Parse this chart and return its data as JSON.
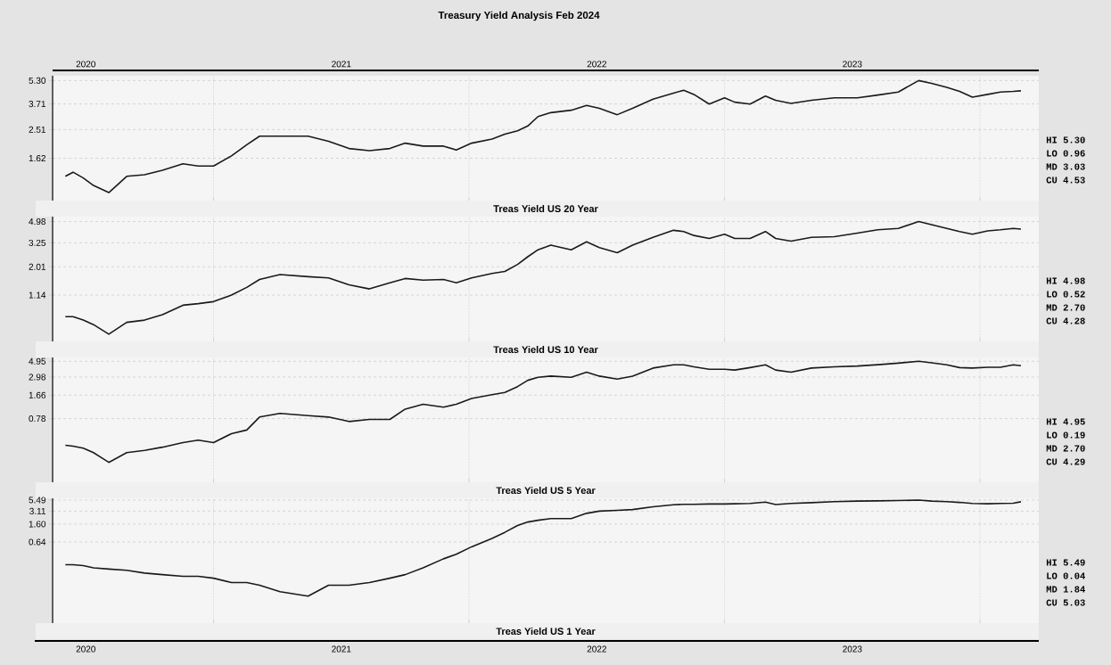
{
  "chart_data": [
    {
      "type": "line",
      "title": "Treasury Yield Analysis Feb 2024",
      "subtitle": "Treas Yield US 20 Year",
      "x": [
        2020.42,
        2020.45,
        2020.49,
        2020.53,
        2020.59,
        2020.66,
        2020.73,
        2020.8,
        2020.88,
        2020.94,
        2021.0,
        2021.07,
        2021.13,
        2021.18,
        2021.26,
        2021.37,
        2021.45,
        2021.53,
        2021.61,
        2021.69,
        2021.75,
        2021.82,
        2021.9,
        2021.95,
        2022.01,
        2022.09,
        2022.14,
        2022.19,
        2022.23,
        2022.27,
        2022.32,
        2022.4,
        2022.46,
        2022.51,
        2022.58,
        2022.64,
        2022.72,
        2022.8,
        2022.84,
        2022.88,
        2022.94,
        2023.0,
        2023.04,
        2023.1,
        2023.16,
        2023.2,
        2023.26,
        2023.34,
        2023.43,
        2023.52,
        2023.6,
        2023.68,
        2023.76,
        2023.81,
        2023.87,
        2023.92,
        2023.97,
        2024.03,
        2024.08,
        2024.13,
        2024.16
      ],
      "series": [
        {
          "color": "#1a1a1a",
          "values": [
            1.23,
            1.31,
            1.2,
            1.07,
            0.96,
            1.23,
            1.26,
            1.35,
            1.49,
            1.44,
            1.44,
            1.68,
            1.99,
            2.27,
            2.27,
            2.27,
            2.1,
            1.88,
            1.82,
            1.88,
            2.04,
            1.95,
            1.95,
            1.84,
            2.04,
            2.17,
            2.34,
            2.46,
            2.65,
            3.06,
            3.25,
            3.37,
            3.63,
            3.47,
            3.15,
            3.47,
            3.99,
            4.37,
            4.57,
            4.29,
            3.7,
            4.07,
            3.81,
            3.7,
            4.18,
            3.92,
            3.74,
            3.92,
            4.07,
            4.07,
            4.25,
            4.45,
            5.3,
            5.08,
            4.77,
            4.49,
            4.11,
            4.29,
            4.45,
            4.49,
            4.53
          ]
        }
      ],
      "xlim": [
        2020.37,
        2024.23
      ],
      "xticks": [
        {
          "value": 2021,
          "label": null
        },
        {
          "value": 2022,
          "label": null
        },
        {
          "value": 2023,
          "label": null
        },
        {
          "value": 2024,
          "label": null
        }
      ],
      "x2lim": [
        2020.37,
        2024.23
      ],
      "x2ticks": [
        {
          "value": 2020.5,
          "label": "2020"
        },
        {
          "value": 2021.5,
          "label": "2021"
        },
        {
          "value": 2022.5,
          "label": "2022"
        },
        {
          "value": 2023.5,
          "label": "2023"
        }
      ],
      "ylim": [
        0.85,
        5.7
      ],
      "yticks": [
        {
          "value": 1.62,
          "label": "1.62"
        },
        {
          "value": 2.51,
          "label": "2.51"
        },
        {
          "value": 3.71,
          "label": "3.71"
        },
        {
          "value": 5.3,
          "label": "5.30"
        }
      ],
      "log": "y",
      "grid": true,
      "tick_labels": "y",
      "annotations": [
        "HI 5.30",
        "LO 0.96",
        "MD 3.03",
        "CU 4.53"
      ]
    },
    {
      "type": "line",
      "title": "Treas Yield US 10 Year",
      "x": [
        2020.42,
        2020.45,
        2020.49,
        2020.53,
        2020.59,
        2020.66,
        2020.73,
        2020.8,
        2020.88,
        2020.94,
        2021.0,
        2021.07,
        2021.13,
        2021.18,
        2021.26,
        2021.37,
        2021.45,
        2021.53,
        2021.61,
        2021.69,
        2021.75,
        2021.82,
        2021.9,
        2021.95,
        2022.01,
        2022.09,
        2022.14,
        2022.19,
        2022.23,
        2022.27,
        2022.32,
        2022.4,
        2022.46,
        2022.51,
        2022.58,
        2022.64,
        2022.72,
        2022.8,
        2022.84,
        2022.88,
        2022.94,
        2023.0,
        2023.04,
        2023.1,
        2023.16,
        2023.2,
        2023.26,
        2023.34,
        2023.43,
        2023.52,
        2023.6,
        2023.68,
        2023.76,
        2023.81,
        2023.87,
        2023.92,
        2023.97,
        2024.03,
        2024.08,
        2024.13,
        2024.16
      ],
      "series": [
        {
          "color": "#1a1a1a",
          "values": [
            0.74,
            0.74,
            0.69,
            0.63,
            0.52,
            0.66,
            0.69,
            0.77,
            0.93,
            0.96,
            1.0,
            1.14,
            1.33,
            1.56,
            1.72,
            1.65,
            1.61,
            1.4,
            1.29,
            1.46,
            1.59,
            1.54,
            1.56,
            1.46,
            1.61,
            1.76,
            1.83,
            2.11,
            2.46,
            2.83,
            3.1,
            2.83,
            3.32,
            2.96,
            2.67,
            3.1,
            3.63,
            4.18,
            4.08,
            3.77,
            3.55,
            3.86,
            3.55,
            3.55,
            4.08,
            3.55,
            3.36,
            3.63,
            3.68,
            3.95,
            4.22,
            4.34,
            4.98,
            4.68,
            4.34,
            4.08,
            3.86,
            4.13,
            4.22,
            4.34,
            4.28
          ]
        }
      ],
      "xlim": [
        2020.37,
        2024.23
      ],
      "xticks": [
        {
          "value": 2021,
          "label": null
        },
        {
          "value": 2022,
          "label": null
        },
        {
          "value": 2023,
          "label": null
        },
        {
          "value": 2024,
          "label": null
        }
      ],
      "ylim": [
        0.45,
        5.5
      ],
      "yticks": [
        {
          "value": 1.14,
          "label": "1.14"
        },
        {
          "value": 2.01,
          "label": "2.01"
        },
        {
          "value": 3.25,
          "label": "3.25"
        },
        {
          "value": 4.98,
          "label": "4.98"
        }
      ],
      "log": "y",
      "grid": true,
      "tick_labels": "y",
      "annotations": [
        "HI 4.98",
        "LO 0.52",
        "MD 2.70",
        "CU 4.28"
      ]
    },
    {
      "type": "line",
      "title": "Treas Yield US  5 Year",
      "x": [
        2020.42,
        2020.45,
        2020.49,
        2020.53,
        2020.59,
        2020.66,
        2020.73,
        2020.8,
        2020.88,
        2020.94,
        2021.0,
        2021.07,
        2021.13,
        2021.18,
        2021.26,
        2021.37,
        2021.45,
        2021.53,
        2021.61,
        2021.69,
        2021.75,
        2021.82,
        2021.9,
        2021.95,
        2022.01,
        2022.09,
        2022.14,
        2022.19,
        2022.23,
        2022.27,
        2022.32,
        2022.4,
        2022.46,
        2022.51,
        2022.58,
        2022.64,
        2022.72,
        2022.8,
        2022.84,
        2022.88,
        2022.94,
        2023.0,
        2023.04,
        2023.1,
        2023.16,
        2023.2,
        2023.26,
        2023.34,
        2023.43,
        2023.52,
        2023.6,
        2023.68,
        2023.76,
        2023.81,
        2023.87,
        2023.92,
        2023.97,
        2024.03,
        2024.08,
        2024.13,
        2024.16
      ],
      "series": [
        {
          "color": "#1a1a1a",
          "values": [
            0.33,
            0.32,
            0.3,
            0.26,
            0.19,
            0.26,
            0.28,
            0.31,
            0.36,
            0.39,
            0.36,
            0.48,
            0.54,
            0.82,
            0.92,
            0.86,
            0.82,
            0.71,
            0.76,
            0.76,
            1.06,
            1.24,
            1.13,
            1.24,
            1.49,
            1.69,
            1.81,
            2.19,
            2.68,
            2.95,
            3.07,
            2.95,
            3.49,
            3.07,
            2.79,
            3.07,
            3.98,
            4.41,
            4.41,
            4.14,
            3.83,
            3.83,
            3.73,
            4.04,
            4.41,
            3.73,
            3.49,
            3.98,
            4.14,
            4.25,
            4.43,
            4.66,
            4.95,
            4.72,
            4.41,
            4.04,
            3.98,
            4.09,
            4.09,
            4.41,
            4.29
          ]
        }
      ],
      "xlim": [
        2020.37,
        2024.23
      ],
      "xticks": [
        {
          "value": 2021,
          "label": null
        },
        {
          "value": 2022,
          "label": null
        },
        {
          "value": 2023,
          "label": null
        },
        {
          "value": 2024,
          "label": null
        }
      ],
      "ylim": [
        0.1,
        5.6
      ],
      "yticks": [
        {
          "value": 0.78,
          "label": "0.78"
        },
        {
          "value": 1.66,
          "label": "1.66"
        },
        {
          "value": 2.98,
          "label": "2.98"
        },
        {
          "value": 4.95,
          "label": "4.95"
        }
      ],
      "log": "y",
      "grid": true,
      "tick_labels": "y",
      "annotations": [
        "HI 4.95",
        "LO 0.19",
        "MD 2.70",
        "CU 4.29"
      ]
    },
    {
      "type": "line",
      "title": "Treas Yield US  1 Year",
      "x": [
        2020.42,
        2020.45,
        2020.49,
        2020.53,
        2020.59,
        2020.66,
        2020.73,
        2020.8,
        2020.88,
        2020.94,
        2021.0,
        2021.07,
        2021.13,
        2021.18,
        2021.26,
        2021.37,
        2021.45,
        2021.53,
        2021.61,
        2021.69,
        2021.75,
        2021.82,
        2021.9,
        2021.95,
        2022.01,
        2022.09,
        2022.14,
        2022.19,
        2022.23,
        2022.27,
        2022.32,
        2022.4,
        2022.46,
        2022.51,
        2022.58,
        2022.64,
        2022.72,
        2022.8,
        2022.84,
        2022.88,
        2022.94,
        2023.0,
        2023.04,
        2023.1,
        2023.16,
        2023.2,
        2023.26,
        2023.34,
        2023.43,
        2023.52,
        2023.6,
        2023.68,
        2023.76,
        2023.81,
        2023.87,
        2023.92,
        2023.97,
        2024.03,
        2024.08,
        2024.13,
        2024.16
      ],
      "series": [
        {
          "color": "#1a1a1a",
          "values": [
            0.2,
            0.2,
            0.19,
            0.17,
            0.16,
            0.15,
            0.13,
            0.12,
            0.11,
            0.11,
            0.1,
            0.08,
            0.08,
            0.07,
            0.05,
            0.04,
            0.07,
            0.07,
            0.08,
            0.1,
            0.12,
            0.17,
            0.27,
            0.34,
            0.5,
            0.77,
            1.05,
            1.49,
            1.78,
            1.95,
            2.12,
            2.12,
            2.78,
            3.11,
            3.23,
            3.37,
            3.89,
            4.3,
            4.42,
            4.42,
            4.48,
            4.48,
            4.54,
            4.6,
            4.93,
            4.36,
            4.6,
            4.8,
            5.06,
            5.2,
            5.27,
            5.34,
            5.49,
            5.2,
            5.06,
            4.87,
            4.6,
            4.54,
            4.6,
            4.67,
            5.03
          ]
        }
      ],
      "xlim": [
        2020.37,
        2024.23
      ],
      "xticks": [
        {
          "value": 2020.5,
          "label": "2020"
        },
        {
          "value": 2021,
          "label": null
        },
        {
          "value": 2021.5,
          "label": "2021"
        },
        {
          "value": 2022,
          "label": null
        },
        {
          "value": 2022.5,
          "label": "2022"
        },
        {
          "value": 2023,
          "label": null
        },
        {
          "value": 2023.5,
          "label": "2023"
        },
        {
          "value": 2024,
          "label": null
        }
      ],
      "ylim": [
        0.01,
        6.0
      ],
      "yticks": [
        {
          "value": 0.64,
          "label": "0.64"
        },
        {
          "value": 1.6,
          "label": "1.60"
        },
        {
          "value": 3.11,
          "label": "3.11"
        },
        {
          "value": 5.49,
          "label": "5.49"
        }
      ],
      "log": "y",
      "grid": true,
      "annotations": [
        "HI 5.49",
        "LO 0.04",
        "MD 1.84",
        "CU 5.03"
      ]
    }
  ]
}
